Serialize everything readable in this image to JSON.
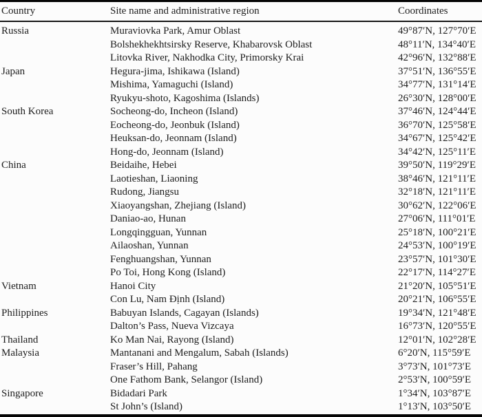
{
  "colors": {
    "background": "#fcfcfc",
    "text": "#1c1c1c",
    "rule": "#050505"
  },
  "table": {
    "headers": [
      "Country",
      "Site name and administrative region",
      "Coordinates"
    ],
    "rows": [
      {
        "country": "Russia",
        "site": "Muraviovka Park, Amur Oblast",
        "coords": "49°87′N, 127°70′E"
      },
      {
        "country": "",
        "site": "Bolshekhekhtsirsky Reserve, Khabarovsk Oblast",
        "coords": "48°11′N, 134°40′E"
      },
      {
        "country": "",
        "site": "Litovka River, Nakhodka City, Primorsky Krai",
        "coords": "42°96′N, 132°88′E"
      },
      {
        "country": "Japan",
        "site": "Hegura-jima, Ishikawa (Island)",
        "coords": "37°51′N, 136°55′E"
      },
      {
        "country": "",
        "site": "Mishima, Yamaguchi (Island)",
        "coords": "34°77′N, 131°14′E"
      },
      {
        "country": "",
        "site": "Ryukyu-shoto, Kagoshima (Islands)",
        "coords": "26°30′N, 128°00′E"
      },
      {
        "country": "South Korea",
        "site": "Socheong-do, Incheon (Island)",
        "coords": "37°46′N, 124°44′E"
      },
      {
        "country": "",
        "site": "Eocheong-do, Jeonbuk (Island)",
        "coords": "36°70′N, 125°58′E"
      },
      {
        "country": "",
        "site": "Heuksan-do, Jeonnam (Island)",
        "coords": "34°67′N, 125°42′E"
      },
      {
        "country": "",
        "site": "Hong-do, Jeonnam (Island)",
        "coords": "34°42′N, 125°11′E"
      },
      {
        "country": "China",
        "site": "Beidaihe, Hebei",
        "coords": "39°50′N, 119°29′E"
      },
      {
        "country": "",
        "site": "Laotieshan, Liaoning",
        "coords": "38°46′N, 121°11′E"
      },
      {
        "country": "",
        "site": "Rudong, Jiangsu",
        "coords": "32°18′N, 121°11′E"
      },
      {
        "country": "",
        "site": "Xiaoyangshan, Zhejiang (Island)",
        "coords": "30°62′N, 122°06′E"
      },
      {
        "country": "",
        "site": "Daniao-ao, Hunan",
        "coords": "27°06′N, 111°01′E"
      },
      {
        "country": "",
        "site": "Longqingguan, Yunnan",
        "coords": "25°18′N, 100°21′E"
      },
      {
        "country": "",
        "site": "Ailaoshan, Yunnan",
        "coords": "24°53′N, 100°19′E"
      },
      {
        "country": "",
        "site": "Fenghuangshan, Yunnan",
        "coords": "23°57′N, 101°30′E"
      },
      {
        "country": "",
        "site": "Po Toi, Hong Kong (Island)",
        "coords": "22°17′N, 114°27′E"
      },
      {
        "country": "Vietnam",
        "site": "Hanoi City",
        "coords": "21°20′N, 105°51′E"
      },
      {
        "country": "",
        "site": "Con Lu, Nam Định (Island)",
        "coords": "20°21′N, 106°55′E"
      },
      {
        "country": "Philippines",
        "site": "Babuyan Islands, Cagayan (Islands)",
        "coords": "19°34′N, 121°48′E"
      },
      {
        "country": "",
        "site": "Dalton’s Pass, Nueva Vizcaya",
        "coords": "16°73′N, 120°55′E"
      },
      {
        "country": "Thailand",
        "site": "Ko Man Nai, Rayong (Island)",
        "coords": "12°01′N, 102°28′E"
      },
      {
        "country": "Malaysia",
        "site": "Mantanani and Mengalum, Sabah (Islands)",
        "coords": "6°20′N, 115°59′E"
      },
      {
        "country": "",
        "site": "Fraser’s Hill, Pahang",
        "coords": "3°73′N, 101°73′E"
      },
      {
        "country": "",
        "site": "One Fathom Bank, Selangor (Island)",
        "coords": "2°53′N, 100°59′E"
      },
      {
        "country": "Singapore",
        "site": "Bidadari Park",
        "coords": "1°34′N, 103°87′E"
      },
      {
        "country": "",
        "site": "St John’s (Island)",
        "coords": "1°13′N, 103°50′E"
      }
    ]
  }
}
